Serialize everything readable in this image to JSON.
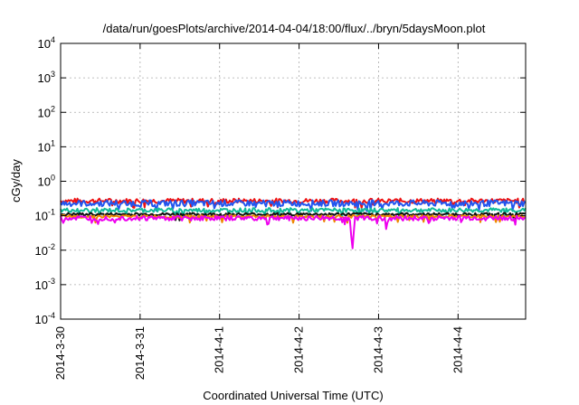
{
  "chart_data": {
    "type": "line",
    "title": "/data/run/goesPlots/archive/2014-04-04/18:00/flux/../bryn/5daysMoon.plot",
    "xlabel": "Coordinated Universal Time (UTC)",
    "ylabel": "cGy/day",
    "y_scale": "log",
    "ylim": [
      0.0001,
      10000
    ],
    "y_ticks": [
      {
        "value": 0.0001,
        "base": "10",
        "exp": "-4"
      },
      {
        "value": 0.001,
        "base": "10",
        "exp": "-3"
      },
      {
        "value": 0.01,
        "base": "10",
        "exp": "-2"
      },
      {
        "value": 0.1,
        "base": "10",
        "exp": "-1"
      },
      {
        "value": 1,
        "base": "10",
        "exp": "0"
      },
      {
        "value": 10,
        "base": "10",
        "exp": "1"
      },
      {
        "value": 100,
        "base": "10",
        "exp": "2"
      },
      {
        "value": 1000,
        "base": "10",
        "exp": "3"
      },
      {
        "value": 10000,
        "base": "10",
        "exp": "4"
      }
    ],
    "x_range_days": [
      0,
      5.85
    ],
    "x_ticks": [
      {
        "day": 0,
        "label": "2014-3-30"
      },
      {
        "day": 1,
        "label": "2014-3-31"
      },
      {
        "day": 2,
        "label": "2014-4-1"
      },
      {
        "day": 3,
        "label": "2014-4-2"
      },
      {
        "day": 4,
        "label": "2014-4-3"
      },
      {
        "day": 5,
        "label": "2014-4-4"
      }
    ],
    "grid": true,
    "legend": "none",
    "series": [
      {
        "color": "#ee1111",
        "base": 0.27,
        "noise": 0.07,
        "dips": []
      },
      {
        "color": "#2255ee",
        "base": 0.23,
        "noise": 0.09,
        "dips": [
          {
            "day": 4.05,
            "value": 0.12
          }
        ]
      },
      {
        "color": "#11bb99",
        "base": 0.145,
        "noise": 0.06,
        "dips": []
      },
      {
        "color": "#111111",
        "base": 0.11,
        "noise": 0.04,
        "dips": []
      },
      {
        "color": "#ee8800",
        "base": 0.095,
        "noise": 0.04,
        "dips": []
      },
      {
        "color": "#ee00ee",
        "base": 0.085,
        "noise": 0.07,
        "dips": [
          {
            "day": 3.67,
            "value": 0.0095
          },
          {
            "day": 4.1,
            "value": 0.029
          },
          {
            "day": 5.72,
            "value": 0.055
          }
        ]
      }
    ]
  }
}
